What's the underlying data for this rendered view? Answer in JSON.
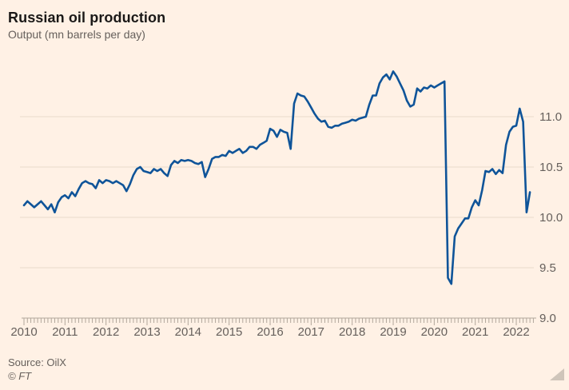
{
  "header": {
    "title": "Russian oil production",
    "subtitle": "Output (mn barrels per day)"
  },
  "footer": {
    "source": "Source: OilX",
    "copyright": "© FT"
  },
  "colors": {
    "background": "#fff1e5",
    "line": "#0f5499",
    "grid": "#e9dcca",
    "axis": "#b1a79c",
    "tick_label": "#66605c",
    "title": "#1a1817",
    "resize_handle": "#cfc5ba"
  },
  "chart_data": {
    "type": "line",
    "title": "Russian oil production",
    "ylabel": "Output (mn barrels per day)",
    "frequency": "monthly",
    "x_start": "2010-01",
    "x_end": "2022-05",
    "x_tick_labels": [
      "2010",
      "2011",
      "2012",
      "2013",
      "2014",
      "2015",
      "2016",
      "2017",
      "2018",
      "2019",
      "2020",
      "2021",
      "2022"
    ],
    "y_ticks": [
      9.0,
      9.5,
      10.0,
      10.5,
      11.0
    ],
    "y_tick_labels": [
      "9.0",
      "9.5",
      "10.0",
      "10.5",
      "11.0"
    ],
    "ylim": [
      9.0,
      11.55
    ],
    "y_axis_side": "right",
    "grid": "horizontal",
    "legend": "none",
    "series": [
      {
        "name": "Russian oil output (mn barrels per day)",
        "color": "#0f5499",
        "values": [
          10.12,
          10.16,
          10.13,
          10.1,
          10.13,
          10.16,
          10.12,
          10.08,
          10.13,
          10.05,
          10.15,
          10.2,
          10.22,
          10.19,
          10.25,
          10.21,
          10.28,
          10.34,
          10.36,
          10.34,
          10.33,
          10.29,
          10.37,
          10.34,
          10.37,
          10.36,
          10.34,
          10.36,
          10.34,
          10.32,
          10.26,
          10.33,
          10.42,
          10.48,
          10.5,
          10.46,
          10.45,
          10.44,
          10.48,
          10.46,
          10.48,
          10.44,
          10.41,
          10.52,
          10.56,
          10.54,
          10.57,
          10.56,
          10.57,
          10.56,
          10.54,
          10.53,
          10.55,
          10.4,
          10.48,
          10.58,
          10.6,
          10.6,
          10.62,
          10.61,
          10.66,
          10.64,
          10.66,
          10.68,
          10.64,
          10.66,
          10.7,
          10.7,
          10.68,
          10.72,
          10.74,
          10.76,
          10.88,
          10.86,
          10.8,
          10.87,
          10.85,
          10.84,
          10.68,
          11.13,
          11.23,
          11.21,
          11.2,
          11.15,
          11.09,
          11.03,
          10.98,
          10.95,
          10.96,
          10.9,
          10.89,
          10.91,
          10.91,
          10.93,
          10.94,
          10.95,
          10.97,
          10.96,
          10.98,
          10.99,
          11.0,
          11.12,
          11.21,
          11.21,
          11.33,
          11.39,
          11.42,
          11.37,
          11.45,
          11.4,
          11.33,
          11.26,
          11.16,
          11.1,
          11.12,
          11.28,
          11.25,
          11.29,
          11.28,
          11.31,
          11.29,
          11.31,
          11.33,
          11.35,
          9.4,
          9.34,
          9.81,
          9.89,
          9.94,
          9.99,
          9.99,
          10.1,
          10.17,
          10.12,
          10.27,
          10.46,
          10.45,
          10.48,
          10.43,
          10.47,
          10.44,
          10.72,
          10.85,
          10.9,
          10.91,
          11.08,
          10.95,
          10.05,
          10.25
        ]
      }
    ]
  }
}
